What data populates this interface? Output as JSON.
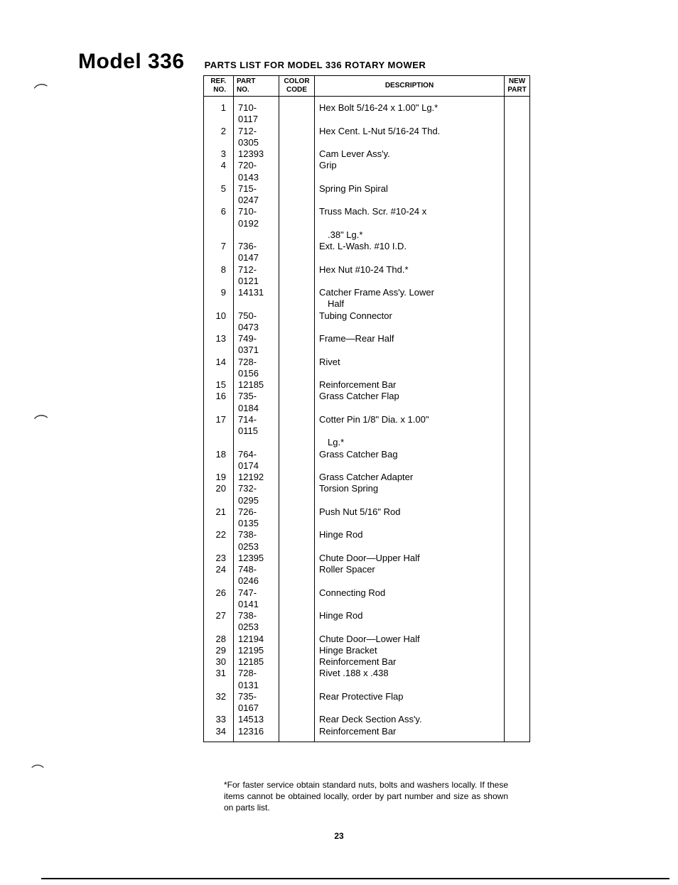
{
  "header": {
    "model_title": "Model 336",
    "subtitle": "PARTS LIST FOR MODEL 336 ROTARY MOWER"
  },
  "table": {
    "columns": {
      "ref": "REF.\nNO.",
      "part": "PART\nNO.",
      "color": "COLOR\nCODE",
      "description": "DESCRIPTION",
      "newpart": "NEW\nPART"
    },
    "rows": [
      {
        "ref": "1",
        "part": "710-0117",
        "desc": "Hex Bolt 5/16-24 x 1.00\" Lg.*"
      },
      {
        "ref": "2",
        "part": "712-0305",
        "desc": "Hex Cent. L-Nut 5/16-24 Thd."
      },
      {
        "ref": "3",
        "part": "12393",
        "desc": "Cam Lever Ass'y."
      },
      {
        "ref": "4",
        "part": "720-0143",
        "desc": "Grip"
      },
      {
        "ref": "5",
        "part": "715-0247",
        "desc": "Spring Pin Spiral"
      },
      {
        "ref": "6",
        "part": "710-0192",
        "desc": "Truss Mach. Scr. #10-24 x",
        "desc2": ".38\" Lg.*"
      },
      {
        "ref": "7",
        "part": "736-0147",
        "desc": "Ext. L-Wash. #10 I.D."
      },
      {
        "ref": "8",
        "part": "712-0121",
        "desc": "Hex Nut #10-24 Thd.*"
      },
      {
        "ref": "9",
        "part": "14131",
        "desc": "Catcher Frame Ass'y. Lower",
        "desc2": "Half"
      },
      {
        "ref": "10",
        "part": "750-0473",
        "desc": "Tubing Connector"
      },
      {
        "ref": "13",
        "part": "749-0371",
        "desc": "Frame—Rear Half"
      },
      {
        "ref": "14",
        "part": "728-0156",
        "desc": "Rivet"
      },
      {
        "ref": "15",
        "part": "12185",
        "desc": "Reinforcement Bar"
      },
      {
        "ref": "16",
        "part": "735-0184",
        "desc": "Grass Catcher Flap"
      },
      {
        "ref": "17",
        "part": "714-0115",
        "desc": "Cotter Pin 1/8\" Dia. x 1.00\"",
        "desc2": "Lg.*"
      },
      {
        "ref": "18",
        "part": "764-0174",
        "desc": "Grass Catcher Bag"
      },
      {
        "ref": "19",
        "part": "12192",
        "desc": "Grass Catcher Adapter"
      },
      {
        "ref": "20",
        "part": "732-0295",
        "desc": "Torsion Spring"
      },
      {
        "ref": "21",
        "part": "726-0135",
        "desc": "Push Nut 5/16\" Rod"
      },
      {
        "ref": "22",
        "part": "738-0253",
        "desc": "Hinge Rod"
      },
      {
        "ref": "23",
        "part": "12395",
        "desc": "Chute Door—Upper Half"
      },
      {
        "ref": "24",
        "part": "748-0246",
        "desc": "Roller Spacer"
      },
      {
        "ref": "26",
        "part": "747-0141",
        "desc": "Connecting Rod"
      },
      {
        "ref": "27",
        "part": "738-0253",
        "desc": "Hinge Rod"
      },
      {
        "ref": "28",
        "part": "12194",
        "desc": "Chute Door—Lower Half"
      },
      {
        "ref": "29",
        "part": "12195",
        "desc": "Hinge Bracket"
      },
      {
        "ref": "30",
        "part": "12185",
        "desc": "Reinforcement Bar"
      },
      {
        "ref": "31",
        "part": "728-0131",
        "desc": "Rivet .188 x .438"
      },
      {
        "ref": "32",
        "part": "735-0167",
        "desc": "Rear Protective Flap"
      },
      {
        "ref": "33",
        "part": "14513",
        "desc": "Rear Deck Section Ass'y."
      },
      {
        "ref": "34",
        "part": "12316",
        "desc": "Reinforcement Bar"
      }
    ]
  },
  "footnote": "*For faster service obtain standard nuts, bolts and washers locally. If these items cannot be obtained locally, order by part number and size as shown on parts list.",
  "page_number": "23"
}
